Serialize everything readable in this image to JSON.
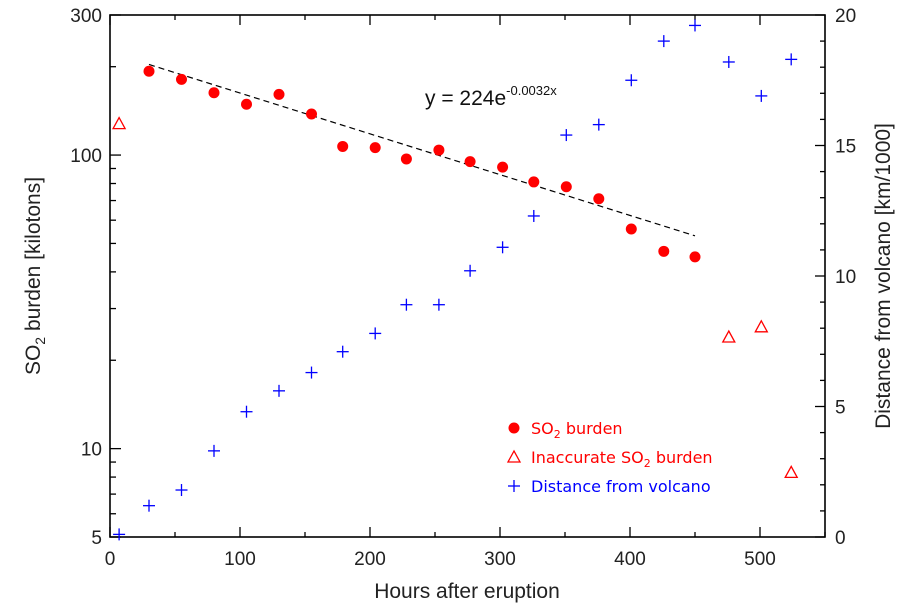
{
  "chart_data": {
    "type": "scatter",
    "xlabel": "Hours after eruption",
    "ylabel": {
      "pre": "SO",
      "sub": "2",
      "post": " burden [kilotons]"
    },
    "y2label": "Distance from volcano [km/1000]",
    "xlim": [
      0,
      550
    ],
    "ylim": [
      5,
      300
    ],
    "yscale": "log",
    "y2lim": [
      0,
      20
    ],
    "xticks": [
      0,
      100,
      200,
      300,
      400,
      500
    ],
    "yticks": [
      5,
      10,
      100,
      300
    ],
    "y2ticks": [
      0,
      5,
      10,
      15,
      20
    ],
    "annotation": {
      "base": "y = 224e",
      "exponent": "-0.0032x"
    },
    "fit": {
      "type": "exponential",
      "a": 224,
      "b": -0.0032,
      "x_range": [
        30,
        450
      ]
    },
    "series": [
      {
        "name": {
          "pre": "SO",
          "sub": "2",
          "post": " burden"
        },
        "marker": "filled-circle",
        "color": "#ff0000",
        "axis": "left",
        "x": [
          30,
          55,
          80,
          105,
          130,
          155,
          179,
          204,
          228,
          253,
          277,
          302,
          326,
          351,
          376,
          401,
          426,
          450
        ],
        "y": [
          193,
          181,
          163,
          149,
          161,
          138,
          107,
          106,
          97,
          104,
          95,
          91,
          81,
          78,
          71,
          56,
          47,
          45
        ]
      },
      {
        "name": {
          "pre": "Inaccurate SO",
          "sub": "2",
          "post": " burden"
        },
        "marker": "open-triangle",
        "color": "#ff0000",
        "axis": "left",
        "x": [
          7,
          476,
          501,
          524
        ],
        "y": [
          128,
          24,
          26,
          8.3
        ]
      },
      {
        "name": {
          "pre": "Distance from volcano",
          "sub": "",
          "post": ""
        },
        "marker": "plus",
        "color": "#0000ff",
        "axis": "right",
        "x": [
          7,
          30,
          55,
          80,
          105,
          130,
          155,
          179,
          204,
          228,
          253,
          277,
          302,
          326,
          351,
          376,
          401,
          426,
          450,
          476,
          501,
          524
        ],
        "y": [
          0.1,
          1.2,
          1.8,
          3.3,
          4.8,
          5.6,
          6.3,
          7.1,
          7.8,
          8.9,
          8.9,
          10.2,
          11.1,
          12.3,
          15.4,
          15.8,
          17.5,
          19.0,
          19.6,
          18.2,
          16.9,
          18.3
        ]
      }
    ],
    "legend": {
      "placement": "bottom-right"
    }
  }
}
